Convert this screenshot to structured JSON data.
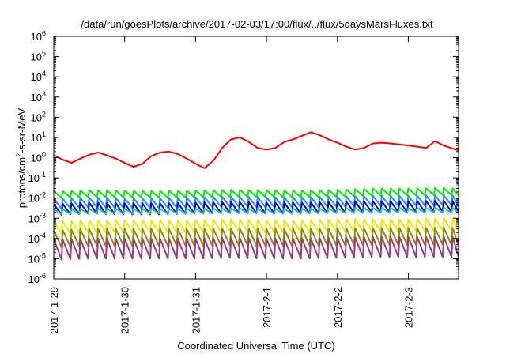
{
  "chart_data": {
    "type": "line",
    "title": "/data/run/goesPlots/archive/2017-02-03/17:00/flux/../flux/5daysMarsFluxes.txt",
    "xlabel": "Coordinated Universal Time (UTC)",
    "ylabel_parts": [
      "protons/cm",
      "2",
      "-s-sr-MeV"
    ],
    "y_scale": "log",
    "ylim": [
      1e-06,
      1000000.0
    ],
    "y_ticks": [
      {
        "value": 1e-06,
        "base": "10",
        "exp": "-6"
      },
      {
        "value": 1e-05,
        "base": "10",
        "exp": "-5"
      },
      {
        "value": 0.0001,
        "base": "10",
        "exp": "-4"
      },
      {
        "value": 0.001,
        "base": "10",
        "exp": "-3"
      },
      {
        "value": 0.01,
        "base": "10",
        "exp": "-2"
      },
      {
        "value": 0.1,
        "base": "10",
        "exp": "-1"
      },
      {
        "value": 1.0,
        "base": "10",
        "exp": "0"
      },
      {
        "value": 10.0,
        "base": "10",
        "exp": "1"
      },
      {
        "value": 100.0,
        "base": "10",
        "exp": "2"
      },
      {
        "value": 1000.0,
        "base": "10",
        "exp": "3"
      },
      {
        "value": 10000.0,
        "base": "10",
        "exp": "4"
      },
      {
        "value": 100000.0,
        "base": "10",
        "exp": "5"
      },
      {
        "value": 1000000.0,
        "base": "10",
        "exp": "6"
      }
    ],
    "xlim": [
      "2017-01-29 00:00",
      "2017-02-03 17:00"
    ],
    "x_ticks": [
      {
        "value": "2017-01-29 00:00",
        "label": "2017-1-29"
      },
      {
        "value": "2017-01-30 00:00",
        "label": "2017-1-30"
      },
      {
        "value": "2017-01-31 00:00",
        "label": "2017-1-31"
      },
      {
        "value": "2017-02-01 00:00",
        "label": "2017-2-1"
      },
      {
        "value": "2017-02-02 00:00",
        "label": "2017-2-2"
      },
      {
        "value": "2017-02-03 00:00",
        "label": "2017-2-3"
      }
    ],
    "grid": false,
    "legend": "none",
    "series": [
      {
        "color": "#ff0000",
        "x": [
          "2017-01-29 00:00",
          "2017-01-29 03:00",
          "2017-01-29 06:00",
          "2017-01-29 09:00",
          "2017-01-29 12:00",
          "2017-01-29 15:00",
          "2017-01-29 18:00",
          "2017-01-29 21:00",
          "2017-01-30 00:00",
          "2017-01-30 03:00",
          "2017-01-30 06:00",
          "2017-01-30 09:00",
          "2017-01-30 12:00",
          "2017-01-30 15:00",
          "2017-01-30 18:00",
          "2017-01-30 21:00",
          "2017-01-31 00:00",
          "2017-01-31 03:00",
          "2017-01-31 06:00",
          "2017-01-31 09:00",
          "2017-01-31 12:00",
          "2017-01-31 15:00",
          "2017-01-31 18:00",
          "2017-01-31 21:00",
          "2017-02-01 00:00",
          "2017-02-01 03:00",
          "2017-02-01 06:00",
          "2017-02-01 09:00",
          "2017-02-01 12:00",
          "2017-02-01 15:00",
          "2017-02-01 18:00",
          "2017-02-01 21:00",
          "2017-02-02 00:00",
          "2017-02-02 03:00",
          "2017-02-02 06:00",
          "2017-02-02 09:00",
          "2017-02-02 12:00",
          "2017-02-02 15:00",
          "2017-02-02 18:00",
          "2017-02-02 21:00",
          "2017-02-03 00:00",
          "2017-02-03 03:00",
          "2017-02-03 06:00",
          "2017-02-03 09:00",
          "2017-02-03 12:00",
          "2017-02-03 15:00",
          "2017-02-03 17:00"
        ],
        "values": [
          1.3,
          0.8,
          0.55,
          0.9,
          1.4,
          1.8,
          1.3,
          0.9,
          0.55,
          0.35,
          0.5,
          1.2,
          1.8,
          2.0,
          1.5,
          0.9,
          0.5,
          0.3,
          0.7,
          3.0,
          8.0,
          10.0,
          6.0,
          3.0,
          2.5,
          3.0,
          6.0,
          8.0,
          12.0,
          18.0,
          13.0,
          8.0,
          5.5,
          3.5,
          2.5,
          3.0,
          5.0,
          5.5,
          5.0,
          4.5,
          4.0,
          3.5,
          3.0,
          6.5,
          4.0,
          2.8,
          2.3
        ]
      },
      {
        "color": "#00ee00",
        "x": [
          "2017-01-29 00:00",
          "2017-01-29 12:00",
          "2017-01-30 00:00",
          "2017-01-30 12:00",
          "2017-01-31 00:00",
          "2017-01-31 12:00",
          "2017-02-01 00:00",
          "2017-02-01 12:00",
          "2017-02-02 00:00",
          "2017-02-02 12:00",
          "2017-02-03 00:00",
          "2017-02-03 12:00",
          "2017-02-03 17:00"
        ],
        "values": [
          0.022,
          0.025,
          0.024,
          0.023,
          0.024,
          0.026,
          0.025,
          0.024,
          0.026,
          0.03,
          0.03,
          0.032,
          0.03
        ]
      },
      {
        "color": "#1e90ff",
        "x": [
          "2017-01-29 00:00",
          "2017-01-29 12:00",
          "2017-01-30 00:00",
          "2017-01-30 12:00",
          "2017-01-31 00:00",
          "2017-01-31 12:00",
          "2017-02-01 00:00",
          "2017-02-01 12:00",
          "2017-02-02 00:00",
          "2017-02-02 12:00",
          "2017-02-03 00:00",
          "2017-02-03 12:00",
          "2017-02-03 17:00"
        ],
        "values": [
          0.009,
          0.011,
          0.01,
          0.01,
          0.011,
          0.012,
          0.011,
          0.011,
          0.012,
          0.013,
          0.013,
          0.014,
          0.013
        ]
      },
      {
        "color": "#0000cd",
        "x": [
          "2017-01-29 00:00",
          "2017-01-29 12:00",
          "2017-01-30 00:00",
          "2017-01-30 12:00",
          "2017-01-31 00:00",
          "2017-01-31 12:00",
          "2017-02-01 00:00",
          "2017-02-01 12:00",
          "2017-02-02 00:00",
          "2017-02-02 12:00",
          "2017-02-03 00:00",
          "2017-02-03 12:00",
          "2017-02-03 17:00"
        ],
        "values": [
          0.005,
          0.006,
          0.0055,
          0.0055,
          0.006,
          0.0065,
          0.006,
          0.006,
          0.0065,
          0.007,
          0.007,
          0.0075,
          0.007
        ]
      },
      {
        "color": "#20c0b0",
        "x": [
          "2017-01-29 00:00",
          "2017-01-29 12:00",
          "2017-01-30 00:00",
          "2017-01-30 12:00",
          "2017-01-31 00:00",
          "2017-01-31 12:00",
          "2017-02-01 00:00",
          "2017-02-01 12:00",
          "2017-02-02 00:00",
          "2017-02-02 12:00",
          "2017-02-03 00:00",
          "2017-02-03 12:00",
          "2017-02-03 17:00"
        ],
        "values": [
          0.0028,
          0.003,
          0.003,
          0.003,
          0.003,
          0.0032,
          0.003,
          0.003,
          0.0032,
          0.0033,
          0.0033,
          0.0034,
          0.0033
        ]
      },
      {
        "color": "#ffe000",
        "x": [
          "2017-01-29 00:00",
          "2017-01-29 12:00",
          "2017-01-30 00:00",
          "2017-01-30 12:00",
          "2017-01-31 00:00",
          "2017-01-31 12:00",
          "2017-02-01 00:00",
          "2017-02-01 12:00",
          "2017-02-02 00:00",
          "2017-02-02 12:00",
          "2017-02-03 00:00",
          "2017-02-03 12:00",
          "2017-02-03 17:00"
        ],
        "values": [
          0.0007,
          0.0008,
          0.0008,
          0.0008,
          0.0008,
          0.0009,
          0.0008,
          0.0008,
          0.0009,
          0.0009,
          0.0009,
          0.001,
          0.0009
        ]
      },
      {
        "color": "#8b8b00",
        "x": [
          "2017-01-29 00:00",
          "2017-01-29 12:00",
          "2017-01-30 00:00",
          "2017-01-30 12:00",
          "2017-01-31 00:00",
          "2017-01-31 12:00",
          "2017-02-01 00:00",
          "2017-02-01 12:00",
          "2017-02-02 00:00",
          "2017-02-02 12:00",
          "2017-02-03 00:00",
          "2017-02-03 12:00",
          "2017-02-03 17:00"
        ],
        "values": [
          0.00025,
          0.0003,
          0.0003,
          0.0003,
          0.0003,
          0.00032,
          0.0003,
          0.0003,
          0.00032,
          0.00033,
          0.00033,
          0.00034,
          0.00033
        ]
      },
      {
        "color": "#9b3a80",
        "x": [
          "2017-01-29 00:00",
          "2017-01-29 12:00",
          "2017-01-30 00:00",
          "2017-01-30 12:00",
          "2017-01-31 00:00",
          "2017-01-31 12:00",
          "2017-02-01 00:00",
          "2017-02-01 12:00",
          "2017-02-02 00:00",
          "2017-02-02 12:00",
          "2017-02-03 00:00",
          "2017-02-03 12:00",
          "2017-02-03 17:00"
        ],
        "values": [
          9e-05,
          0.0001,
          0.0001,
          0.0001,
          0.0001,
          0.00011,
          0.0001,
          0.0001,
          0.00011,
          0.00012,
          0.00012,
          0.00012,
          0.00012
        ]
      }
    ],
    "sawtooth_period_hours": 3,
    "sawtooth_drop_decades": [
      0,
      0.35,
      0.5,
      0.55,
      0.25,
      0.6,
      0.85,
      1.0
    ]
  }
}
